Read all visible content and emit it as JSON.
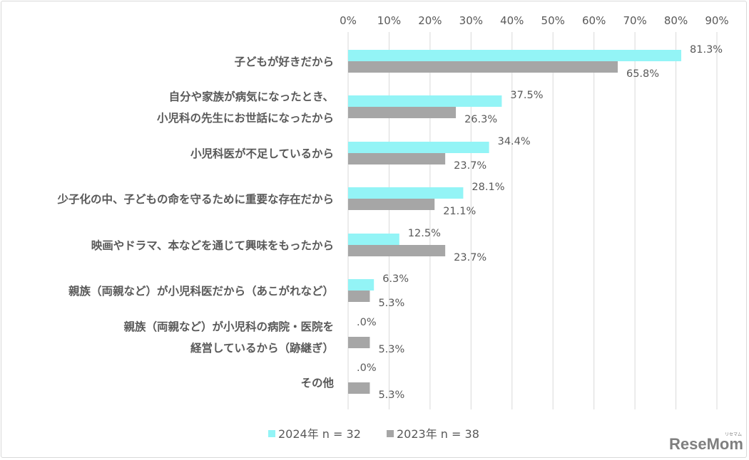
{
  "chart_data": {
    "type": "bar",
    "orientation": "horizontal",
    "categories": [
      [
        "子どもが好きだから"
      ],
      [
        "自分や家族が病気になったとき、",
        "小児科の先生にお世話になったから"
      ],
      [
        "小児科医が不足しているから"
      ],
      [
        "少子化の中、子どもの命を守るために重要な存在だから"
      ],
      [
        "映画やドラマ、本などを通じて興味をもったから"
      ],
      [
        "親族（両親など）が小児科医だから（あこがれなど）"
      ],
      [
        "親族（両親など）が小児科の病院・医院を",
        "経営しているから（跡継ぎ）"
      ],
      [
        "その他"
      ]
    ],
    "series": [
      {
        "name": "2024年 n = 32",
        "color": "#93f4f6",
        "values": [
          81.3,
          37.5,
          34.4,
          28.1,
          12.5,
          6.3,
          0.0,
          0.0
        ],
        "labels": [
          "81.3%",
          "37.5%",
          "34.4%",
          "28.1%",
          "12.5%",
          "6.3%",
          ".0%",
          ".0%"
        ]
      },
      {
        "name": "2023年 n = 38",
        "color": "#a6a6a6",
        "values": [
          65.8,
          26.3,
          23.7,
          21.1,
          23.7,
          5.3,
          5.3,
          5.3
        ],
        "labels": [
          "65.8%",
          "26.3%",
          "23.7%",
          "21.1%",
          "23.7%",
          "5.3%",
          "5.3%",
          "5.3%"
        ]
      }
    ],
    "xlim": [
      0,
      90
    ],
    "xticks": [
      "0%",
      "10%",
      "20%",
      "30%",
      "40%",
      "50%",
      "60%",
      "70%",
      "80%",
      "90%"
    ],
    "x_axis_position": "top",
    "grid": true,
    "legend_placement": "bottom"
  },
  "logo": {
    "text": "ReseMom",
    "ruby": "リセマム"
  }
}
